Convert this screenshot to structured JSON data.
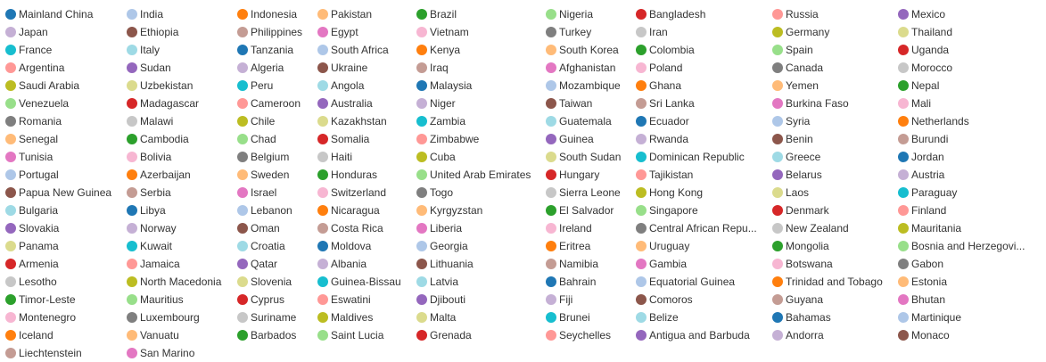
{
  "chart_data": {
    "type": "legend",
    "legend": [
      {
        "label": "Mainland China",
        "color": "#1f77b4"
      },
      {
        "label": "India",
        "color": "#aec7e8"
      },
      {
        "label": "Indonesia",
        "color": "#ff7f0e"
      },
      {
        "label": "Pakistan",
        "color": "#ffbb78"
      },
      {
        "label": "Brazil",
        "color": "#2ca02c"
      },
      {
        "label": "Nigeria",
        "color": "#98df8a"
      },
      {
        "label": "Bangladesh",
        "color": "#d62728"
      },
      {
        "label": "Russia",
        "color": "#ff9896"
      },
      {
        "label": "Mexico",
        "color": "#9467bd"
      },
      {
        "label": "Japan",
        "color": "#c5b0d5"
      },
      {
        "label": "Ethiopia",
        "color": "#8c564b"
      },
      {
        "label": "Philippines",
        "color": "#c49c94"
      },
      {
        "label": "Egypt",
        "color": "#e377c2"
      },
      {
        "label": "Vietnam",
        "color": "#f7b6d2"
      },
      {
        "label": "Turkey",
        "color": "#7f7f7f"
      },
      {
        "label": "Iran",
        "color": "#c7c7c7"
      },
      {
        "label": "Germany",
        "color": "#bcbd22"
      },
      {
        "label": "Thailand",
        "color": "#dbdb8d"
      },
      {
        "label": "France",
        "color": "#17becf"
      },
      {
        "label": "Italy",
        "color": "#9edae5"
      },
      {
        "label": "Tanzania",
        "color": "#1f77b4"
      },
      {
        "label": "South Africa",
        "color": "#aec7e8"
      },
      {
        "label": "Kenya",
        "color": "#ff7f0e"
      },
      {
        "label": "South Korea",
        "color": "#ffbb78"
      },
      {
        "label": "Colombia",
        "color": "#2ca02c"
      },
      {
        "label": "Spain",
        "color": "#98df8a"
      },
      {
        "label": "Uganda",
        "color": "#d62728"
      },
      {
        "label": "Argentina",
        "color": "#ff9896"
      },
      {
        "label": "Sudan",
        "color": "#9467bd"
      },
      {
        "label": "Algeria",
        "color": "#c5b0d5"
      },
      {
        "label": "Ukraine",
        "color": "#8c564b"
      },
      {
        "label": "Iraq",
        "color": "#c49c94"
      },
      {
        "label": "Afghanistan",
        "color": "#e377c2"
      },
      {
        "label": "Poland",
        "color": "#f7b6d2"
      },
      {
        "label": "Canada",
        "color": "#7f7f7f"
      },
      {
        "label": "Morocco",
        "color": "#c7c7c7"
      },
      {
        "label": "Saudi Arabia",
        "color": "#bcbd22"
      },
      {
        "label": "Uzbekistan",
        "color": "#dbdb8d"
      },
      {
        "label": "Peru",
        "color": "#17becf"
      },
      {
        "label": "Angola",
        "color": "#9edae5"
      },
      {
        "label": "Malaysia",
        "color": "#1f77b4"
      },
      {
        "label": "Mozambique",
        "color": "#aec7e8"
      },
      {
        "label": "Ghana",
        "color": "#ff7f0e"
      },
      {
        "label": "Yemen",
        "color": "#ffbb78"
      },
      {
        "label": "Nepal",
        "color": "#2ca02c"
      },
      {
        "label": "Venezuela",
        "color": "#98df8a"
      },
      {
        "label": "Madagascar",
        "color": "#d62728"
      },
      {
        "label": "Cameroon",
        "color": "#ff9896"
      },
      {
        "label": "Australia",
        "color": "#9467bd"
      },
      {
        "label": "Niger",
        "color": "#c5b0d5"
      },
      {
        "label": "Taiwan",
        "color": "#8c564b"
      },
      {
        "label": "Sri Lanka",
        "color": "#c49c94"
      },
      {
        "label": "Burkina Faso",
        "color": "#e377c2"
      },
      {
        "label": "Mali",
        "color": "#f7b6d2"
      },
      {
        "label": "Romania",
        "color": "#7f7f7f"
      },
      {
        "label": "Malawi",
        "color": "#c7c7c7"
      },
      {
        "label": "Chile",
        "color": "#bcbd22"
      },
      {
        "label": "Kazakhstan",
        "color": "#dbdb8d"
      },
      {
        "label": "Zambia",
        "color": "#17becf"
      },
      {
        "label": "Guatemala",
        "color": "#9edae5"
      },
      {
        "label": "Ecuador",
        "color": "#1f77b4"
      },
      {
        "label": "Syria",
        "color": "#aec7e8"
      },
      {
        "label": "Netherlands",
        "color": "#ff7f0e"
      },
      {
        "label": "Senegal",
        "color": "#ffbb78"
      },
      {
        "label": "Cambodia",
        "color": "#2ca02c"
      },
      {
        "label": "Chad",
        "color": "#98df8a"
      },
      {
        "label": "Somalia",
        "color": "#d62728"
      },
      {
        "label": "Zimbabwe",
        "color": "#ff9896"
      },
      {
        "label": "Guinea",
        "color": "#9467bd"
      },
      {
        "label": "Rwanda",
        "color": "#c5b0d5"
      },
      {
        "label": "Benin",
        "color": "#8c564b"
      },
      {
        "label": "Burundi",
        "color": "#c49c94"
      },
      {
        "label": "Tunisia",
        "color": "#e377c2"
      },
      {
        "label": "Bolivia",
        "color": "#f7b6d2"
      },
      {
        "label": "Belgium",
        "color": "#7f7f7f"
      },
      {
        "label": "Haiti",
        "color": "#c7c7c7"
      },
      {
        "label": "Cuba",
        "color": "#bcbd22"
      },
      {
        "label": "South Sudan",
        "color": "#dbdb8d"
      },
      {
        "label": "Dominican Republic",
        "color": "#17becf"
      },
      {
        "label": "Greece",
        "color": "#9edae5"
      },
      {
        "label": "Jordan",
        "color": "#1f77b4"
      },
      {
        "label": "Portugal",
        "color": "#aec7e8"
      },
      {
        "label": "Azerbaijan",
        "color": "#ff7f0e"
      },
      {
        "label": "Sweden",
        "color": "#ffbb78"
      },
      {
        "label": "Honduras",
        "color": "#2ca02c"
      },
      {
        "label": "United Arab Emirates",
        "color": "#98df8a"
      },
      {
        "label": "Hungary",
        "color": "#d62728"
      },
      {
        "label": "Tajikistan",
        "color": "#ff9896"
      },
      {
        "label": "Belarus",
        "color": "#9467bd"
      },
      {
        "label": "Austria",
        "color": "#c5b0d5"
      },
      {
        "label": "Papua New Guinea",
        "color": "#8c564b"
      },
      {
        "label": "Serbia",
        "color": "#c49c94"
      },
      {
        "label": "Israel",
        "color": "#e377c2"
      },
      {
        "label": "Switzerland",
        "color": "#f7b6d2"
      },
      {
        "label": "Togo",
        "color": "#7f7f7f"
      },
      {
        "label": "Sierra Leone",
        "color": "#c7c7c7"
      },
      {
        "label": "Hong Kong",
        "color": "#bcbd22"
      },
      {
        "label": "Laos",
        "color": "#dbdb8d"
      },
      {
        "label": "Paraguay",
        "color": "#17becf"
      },
      {
        "label": "Bulgaria",
        "color": "#9edae5"
      },
      {
        "label": "Libya",
        "color": "#1f77b4"
      },
      {
        "label": "Lebanon",
        "color": "#aec7e8"
      },
      {
        "label": "Nicaragua",
        "color": "#ff7f0e"
      },
      {
        "label": "Kyrgyzstan",
        "color": "#ffbb78"
      },
      {
        "label": "El Salvador",
        "color": "#2ca02c"
      },
      {
        "label": "Singapore",
        "color": "#98df8a"
      },
      {
        "label": "Denmark",
        "color": "#d62728"
      },
      {
        "label": "Finland",
        "color": "#ff9896"
      },
      {
        "label": "Slovakia",
        "color": "#9467bd"
      },
      {
        "label": "Norway",
        "color": "#c5b0d5"
      },
      {
        "label": "Oman",
        "color": "#8c564b"
      },
      {
        "label": "Costa Rica",
        "color": "#c49c94"
      },
      {
        "label": "Liberia",
        "color": "#e377c2"
      },
      {
        "label": "Ireland",
        "color": "#f7b6d2"
      },
      {
        "label": "Central African Repu...",
        "color": "#7f7f7f"
      },
      {
        "label": "New Zealand",
        "color": "#c7c7c7"
      },
      {
        "label": "Mauritania",
        "color": "#bcbd22"
      },
      {
        "label": "Panama",
        "color": "#dbdb8d"
      },
      {
        "label": "Kuwait",
        "color": "#17becf"
      },
      {
        "label": "Croatia",
        "color": "#9edae5"
      },
      {
        "label": "Moldova",
        "color": "#1f77b4"
      },
      {
        "label": "Georgia",
        "color": "#aec7e8"
      },
      {
        "label": "Eritrea",
        "color": "#ff7f0e"
      },
      {
        "label": "Uruguay",
        "color": "#ffbb78"
      },
      {
        "label": "Mongolia",
        "color": "#2ca02c"
      },
      {
        "label": "Bosnia and Herzegovi...",
        "color": "#98df8a"
      },
      {
        "label": "Armenia",
        "color": "#d62728"
      },
      {
        "label": "Jamaica",
        "color": "#ff9896"
      },
      {
        "label": "Qatar",
        "color": "#9467bd"
      },
      {
        "label": "Albania",
        "color": "#c5b0d5"
      },
      {
        "label": "Lithuania",
        "color": "#8c564b"
      },
      {
        "label": "Namibia",
        "color": "#c49c94"
      },
      {
        "label": "Gambia",
        "color": "#e377c2"
      },
      {
        "label": "Botswana",
        "color": "#f7b6d2"
      },
      {
        "label": "Gabon",
        "color": "#7f7f7f"
      },
      {
        "label": "Lesotho",
        "color": "#c7c7c7"
      },
      {
        "label": "North Macedonia",
        "color": "#bcbd22"
      },
      {
        "label": "Slovenia",
        "color": "#dbdb8d"
      },
      {
        "label": "Guinea-Bissau",
        "color": "#17becf"
      },
      {
        "label": "Latvia",
        "color": "#9edae5"
      },
      {
        "label": "Bahrain",
        "color": "#1f77b4"
      },
      {
        "label": "Equatorial Guinea",
        "color": "#aec7e8"
      },
      {
        "label": "Trinidad and Tobago",
        "color": "#ff7f0e"
      },
      {
        "label": "Estonia",
        "color": "#ffbb78"
      },
      {
        "label": "Timor-Leste",
        "color": "#2ca02c"
      },
      {
        "label": "Mauritius",
        "color": "#98df8a"
      },
      {
        "label": "Cyprus",
        "color": "#d62728"
      },
      {
        "label": "Eswatini",
        "color": "#ff9896"
      },
      {
        "label": "Djibouti",
        "color": "#9467bd"
      },
      {
        "label": "Fiji",
        "color": "#c5b0d5"
      },
      {
        "label": "Comoros",
        "color": "#8c564b"
      },
      {
        "label": "Guyana",
        "color": "#c49c94"
      },
      {
        "label": "Bhutan",
        "color": "#e377c2"
      },
      {
        "label": "Montenegro",
        "color": "#f7b6d2"
      },
      {
        "label": "Luxembourg",
        "color": "#7f7f7f"
      },
      {
        "label": "Suriname",
        "color": "#c7c7c7"
      },
      {
        "label": "Maldives",
        "color": "#bcbd22"
      },
      {
        "label": "Malta",
        "color": "#dbdb8d"
      },
      {
        "label": "Brunei",
        "color": "#17becf"
      },
      {
        "label": "Belize",
        "color": "#9edae5"
      },
      {
        "label": "Bahamas",
        "color": "#1f77b4"
      },
      {
        "label": "Martinique",
        "color": "#aec7e8"
      },
      {
        "label": "Iceland",
        "color": "#ff7f0e"
      },
      {
        "label": "Vanuatu",
        "color": "#ffbb78"
      },
      {
        "label": "Barbados",
        "color": "#2ca02c"
      },
      {
        "label": "Saint Lucia",
        "color": "#98df8a"
      },
      {
        "label": "Grenada",
        "color": "#d62728"
      },
      {
        "label": "Seychelles",
        "color": "#ff9896"
      },
      {
        "label": "Antigua and Barbuda",
        "color": "#9467bd"
      },
      {
        "label": "Andorra",
        "color": "#c5b0d5"
      },
      {
        "label": "Monaco",
        "color": "#8c564b"
      },
      {
        "label": "Liechtenstein",
        "color": "#c49c94"
      },
      {
        "label": "San Marino",
        "color": "#e377c2"
      }
    ]
  }
}
